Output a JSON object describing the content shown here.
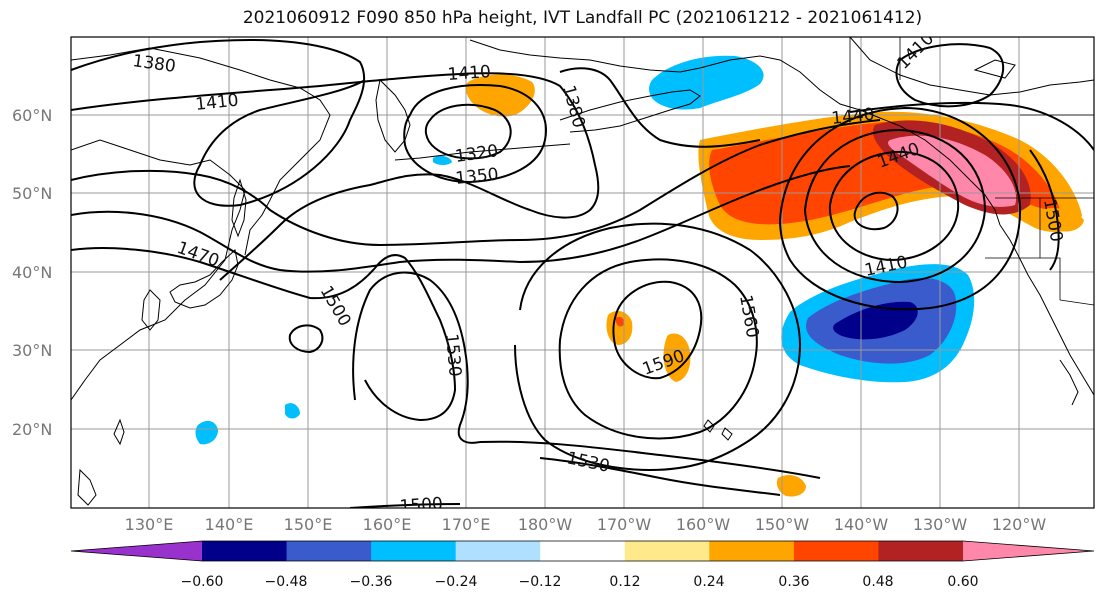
{
  "title": "2021060912 F090 850 hPa height, IVT Landfall PC (2021061212 - 2021061412)",
  "lat_labels": [
    "60°N",
    "50°N",
    "40°N",
    "30°N",
    "20°N"
  ],
  "lon_labels": [
    "130°E",
    "140°E",
    "150°E",
    "160°E",
    "170°E",
    "180°W",
    "170°W",
    "160°W",
    "150°W",
    "140°W",
    "130°W",
    "120°W"
  ],
  "contour_labels": [
    "1380",
    "1410",
    "1410",
    "1380",
    "1320",
    "1350",
    "1470",
    "1500",
    "1530",
    "1590",
    "1560",
    "1530",
    "1500",
    "1410",
    "1440",
    "1440",
    "1410",
    "1500"
  ],
  "colorbar": {
    "colors": [
      "#9932CC",
      "#00008B",
      "#3A5BCC",
      "#00BFFF",
      "#B0E0FF",
      "#FFFFFF",
      "#FFE98A",
      "#FFA500",
      "#FF4500",
      "#B22222",
      "#FF88AA"
    ],
    "tick_labels": [
      "−0.60",
      "−0.48",
      "−0.36",
      "−0.24",
      "−0.12",
      "0.12",
      "0.24",
      "0.36",
      "0.48",
      "0.60"
    ]
  }
}
